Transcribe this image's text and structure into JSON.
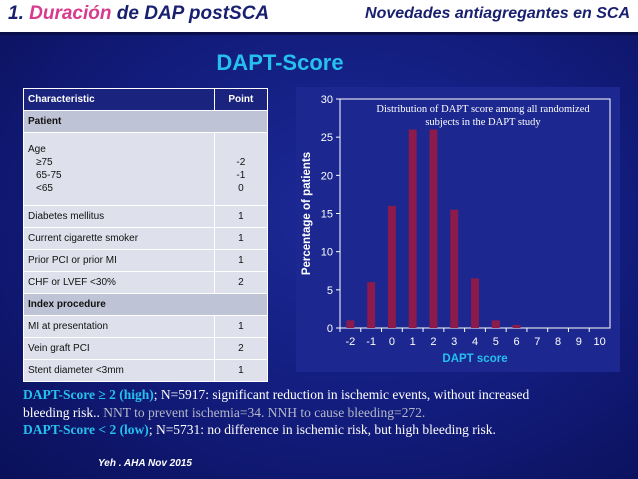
{
  "header": {
    "title_num": "1.",
    "title_highlight": "Duración",
    "title_rest": "de DAP postSCA",
    "right": "Novedades antiagregantes en SCA"
  },
  "main_title": "DAPT-Score",
  "table": {
    "col_characteristic": "Characteristic",
    "col_point": "Point",
    "section_patient": "Patient",
    "age_label": "Age",
    "age_sub": [
      "≥75",
      "65-75",
      "<65"
    ],
    "age_points": [
      "-2",
      "-1",
      "0"
    ],
    "rows_patient": [
      {
        "label": "Diabetes mellitus",
        "point": "1"
      },
      {
        "label": "Current cigarette smoker",
        "point": "1"
      },
      {
        "label": "Prior PCI or prior MI",
        "point": "1"
      },
      {
        "label": "CHF or LVEF <30%",
        "point": "2"
      }
    ],
    "section_index": "Index procedure",
    "rows_index": [
      {
        "label": "MI at presentation",
        "point": "1"
      },
      {
        "label": "Vein graft PCI",
        "point": "2"
      },
      {
        "label": "Stent diameter <3mm",
        "point": "1"
      }
    ]
  },
  "chart_data": {
    "type": "bar",
    "title_line1": "Distribution of DAPT score among all randomized",
    "title_line2": "subjects in the DAPT study",
    "xlabel": "DAPT score",
    "ylabel": "Percentage of patients",
    "categories": [
      "-2",
      "-1",
      "0",
      "1",
      "2",
      "3",
      "4",
      "5",
      "6",
      "7",
      "8",
      "9",
      "10"
    ],
    "values": [
      1,
      6,
      16,
      26,
      26,
      15.5,
      6.5,
      1,
      0.4,
      0,
      0,
      0,
      0
    ],
    "y_ticks": [
      "0",
      "5",
      "10",
      "15",
      "20",
      "25",
      "30"
    ],
    "ylim": [
      0,
      30
    ],
    "bar_color": "#8c1a4a",
    "axis_color": "#ffffff",
    "grid": false
  },
  "note": {
    "line1_lead": "DAPT-Score ≥ 2 (high)",
    "line1_rest": "; N=5917: significant reduction in ischemic events, without increased",
    "line2_start": "bleeding risk.. ",
    "line2_gray": "NNT to prevent ischemia=34. NNH to cause bleeding=272.",
    "line3_lead": "DAPT-Score < 2 (low)",
    "line3_rest": "; N=5731: no difference in ischemic risk, but high bleeding risk."
  },
  "citation": "Yeh . AHA  Nov 2015"
}
